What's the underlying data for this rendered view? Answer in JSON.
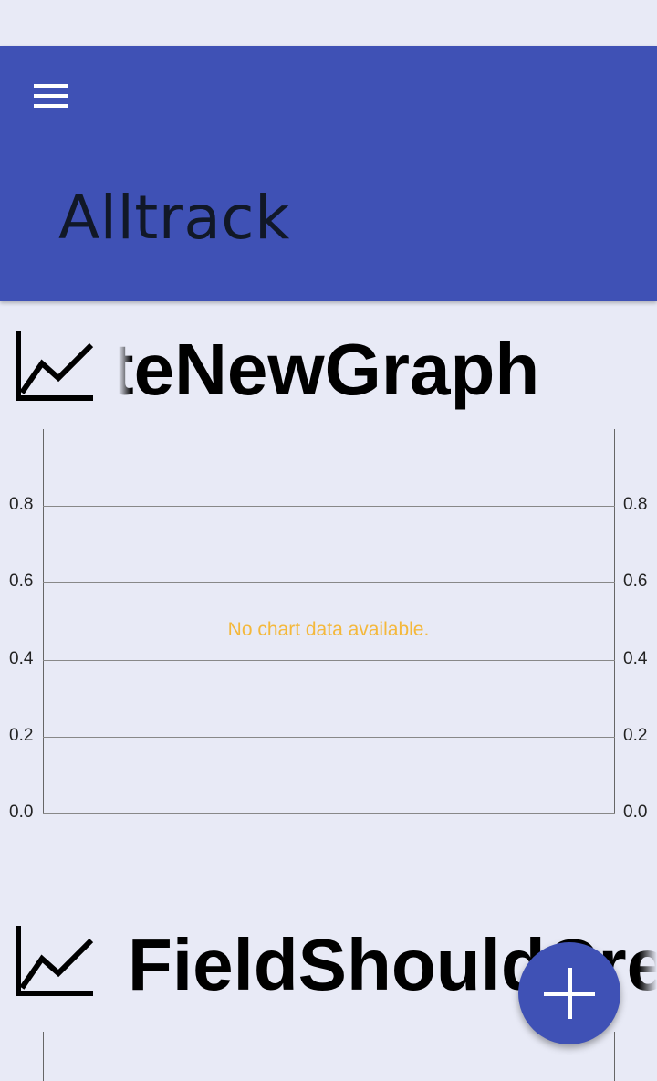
{
  "app_bar": {
    "title": "Alltrack",
    "menu_icon": "menu-icon",
    "color": "#3f51b5"
  },
  "graphs": [
    {
      "icon": "line-chart-icon",
      "name": "CreateNewGraph",
      "visible_name": "teNewGraph",
      "y_ticks": [
        "0.8",
        "0.6",
        "0.4",
        "0.2",
        "0.0"
      ],
      "empty_message": "No chart data available."
    },
    {
      "icon": "line-chart-icon",
      "name": "FieldShouldCrea",
      "visible_name": "FieldShouldCrea"
    }
  ],
  "fab": {
    "icon": "plus-icon"
  },
  "colors": {
    "background": "#e8eaf6",
    "empty_message": "#f4b83b",
    "fab": "#3f51b5"
  }
}
